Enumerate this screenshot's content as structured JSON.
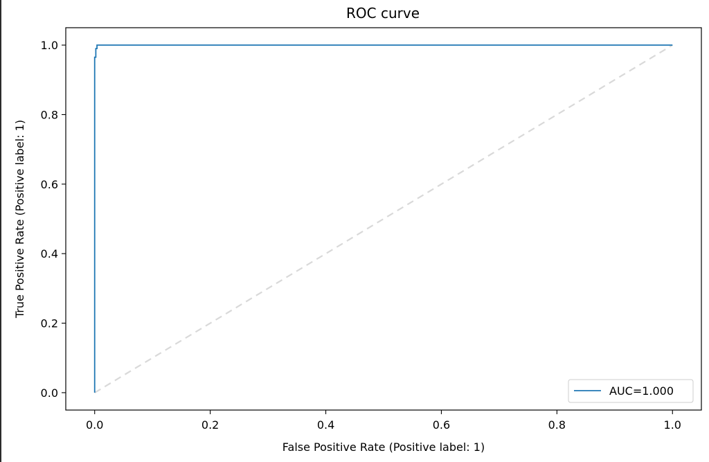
{
  "chart_data": {
    "type": "line",
    "title": "ROC curve",
    "xlabel": "False Positive Rate (Positive label: 1)",
    "ylabel": "True Positive Rate (Positive label: 1)",
    "xlim": [
      -0.05,
      1.05
    ],
    "ylim": [
      -0.05,
      1.05
    ],
    "xticks": [
      0.0,
      0.2,
      0.4,
      0.6,
      0.8,
      1.0
    ],
    "yticks": [
      0.0,
      0.2,
      0.4,
      0.6,
      0.8,
      1.0
    ],
    "xtick_labels": [
      "0.0",
      "0.2",
      "0.4",
      "0.6",
      "0.8",
      "1.0"
    ],
    "ytick_labels": [
      "0.0",
      "0.2",
      "0.4",
      "0.6",
      "0.8",
      "1.0"
    ],
    "grid": false,
    "legend_position": "lower-right",
    "series": [
      {
        "name": "AUC=1.000",
        "color": "#1f77b4",
        "x": [
          0.0,
          0.0,
          0.002,
          0.002,
          0.004,
          0.004,
          1.0
        ],
        "y": [
          0.0,
          0.965,
          0.965,
          0.99,
          0.99,
          1.0,
          1.0
        ]
      }
    ],
    "reference_line": {
      "x": [
        0.0,
        1.0
      ],
      "y": [
        0.0,
        1.0
      ],
      "color": "#d9d9d9",
      "style": "dashed"
    }
  }
}
